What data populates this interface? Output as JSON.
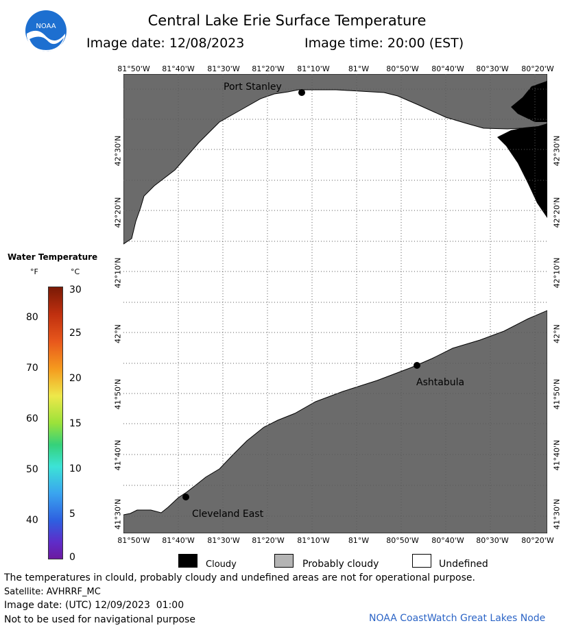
{
  "header": {
    "title": "Central Lake Erie Surface Temperature",
    "image_date": "Image date: 12/08/2023",
    "image_time": "Image time: 20:00 (EST)",
    "logo_text": "NOAA"
  },
  "map": {
    "lon_ticks": [
      "81°50'W",
      "81°40'W",
      "81°30'W",
      "81°20'W",
      "81°10'W",
      "81°W",
      "80°50'W",
      "80°40'W",
      "80°30'W",
      "80°20'W"
    ],
    "lat_ticks": [
      "42°30'N",
      "42°20'N",
      "42°10'N",
      "42°N",
      "41°50'N",
      "41°40'N",
      "41°30'N"
    ],
    "places": {
      "port_stanley": "Port Stanley",
      "ashtabula": "Ashtabula",
      "cleveland_east": "Cleveland East"
    },
    "colors": {
      "land": "#6b6b6b",
      "undefined": "#ffffff",
      "cloudy": "#000000",
      "probably_cloudy": "#b4b4b4"
    }
  },
  "legend": {
    "title": "Water Temperature",
    "unit_f": "°F",
    "unit_c": "°C",
    "fahrenheit_ticks": [
      "80",
      "70",
      "60",
      "50",
      "40"
    ],
    "celsius_ticks": [
      "30",
      "25",
      "20",
      "15",
      "10",
      "5",
      "0"
    ]
  },
  "key": {
    "cloudy": "Cloudy",
    "probably_cloudy": "Probably cloudy",
    "undefined": "Undefined"
  },
  "footer": {
    "disclaimer": "The temperatures in clould, probably cloudy and undefined areas are not for operational purpose.",
    "satellite": "Satellite: AVHRRF_MC",
    "utc_date": "Image date: (UTC) 12/09/2023  01:00",
    "nav_note": "Not to be used for navigational purpose",
    "credit": "NOAA CoastWatch Great Lakes Node"
  }
}
